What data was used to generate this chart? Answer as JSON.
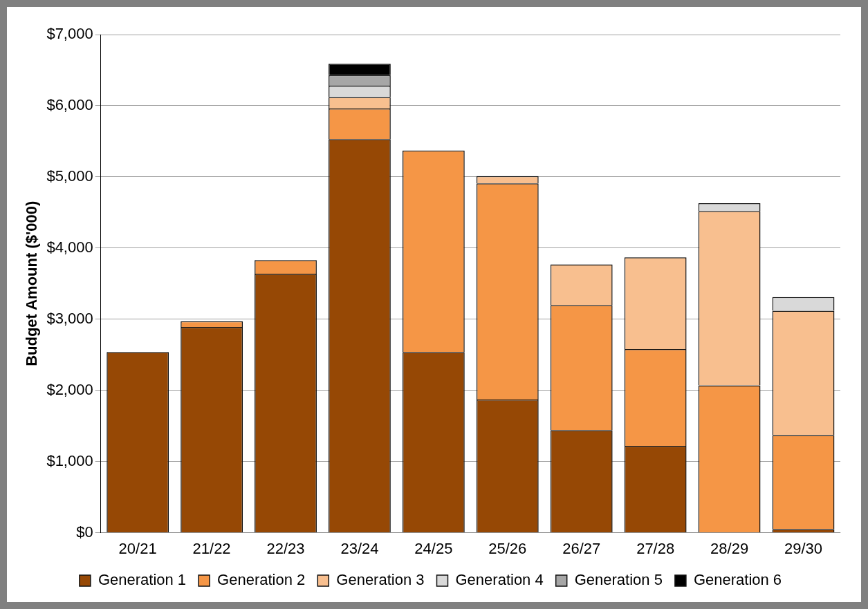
{
  "chart_data": {
    "type": "bar",
    "stacked": true,
    "ylabel": "Budget Amount ($'000)",
    "categories": [
      "20/21",
      "21/22",
      "22/23",
      "23/24",
      "24/25",
      "25/26",
      "26/27",
      "27/28",
      "28/29",
      "29/30"
    ],
    "series": [
      {
        "name": "Generation 1",
        "color": "#964805",
        "values": [
          2540,
          2890,
          3640,
          5530,
          2540,
          1870,
          1440,
          1220,
          0,
          50
        ]
      },
      {
        "name": "Generation 2",
        "color": "#f59646",
        "values": [
          0,
          80,
          190,
          430,
          2830,
          3040,
          1760,
          1360,
          2070,
          1320
        ]
      },
      {
        "name": "Generation 3",
        "color": "#f8bf8f",
        "values": [
          0,
          0,
          0,
          160,
          0,
          100,
          570,
          1290,
          2450,
          1750
        ]
      },
      {
        "name": "Generation 4",
        "color": "#d9d9d9",
        "values": [
          0,
          0,
          0,
          160,
          0,
          0,
          0,
          0,
          110,
          190
        ]
      },
      {
        "name": "Generation 5",
        "color": "#a6a6a6",
        "values": [
          0,
          0,
          0,
          150,
          0,
          0,
          0,
          0,
          0,
          0
        ]
      },
      {
        "name": "Generation 6",
        "color": "#000000",
        "values": [
          0,
          0,
          0,
          160,
          0,
          0,
          0,
          0,
          0,
          0
        ]
      }
    ],
    "ylim": [
      0,
      7000
    ],
    "yticks": [
      {
        "value": 0,
        "label": "$0"
      },
      {
        "value": 1000,
        "label": "$1,000"
      },
      {
        "value": 2000,
        "label": "$2,000"
      },
      {
        "value": 3000,
        "label": "$3,000"
      },
      {
        "value": 4000,
        "label": "$4,000"
      },
      {
        "value": 5000,
        "label": "$5,000"
      },
      {
        "value": 6000,
        "label": "$6,000"
      },
      {
        "value": 7000,
        "label": "$7,000"
      }
    ],
    "grid": "y",
    "legend": "bottom"
  }
}
